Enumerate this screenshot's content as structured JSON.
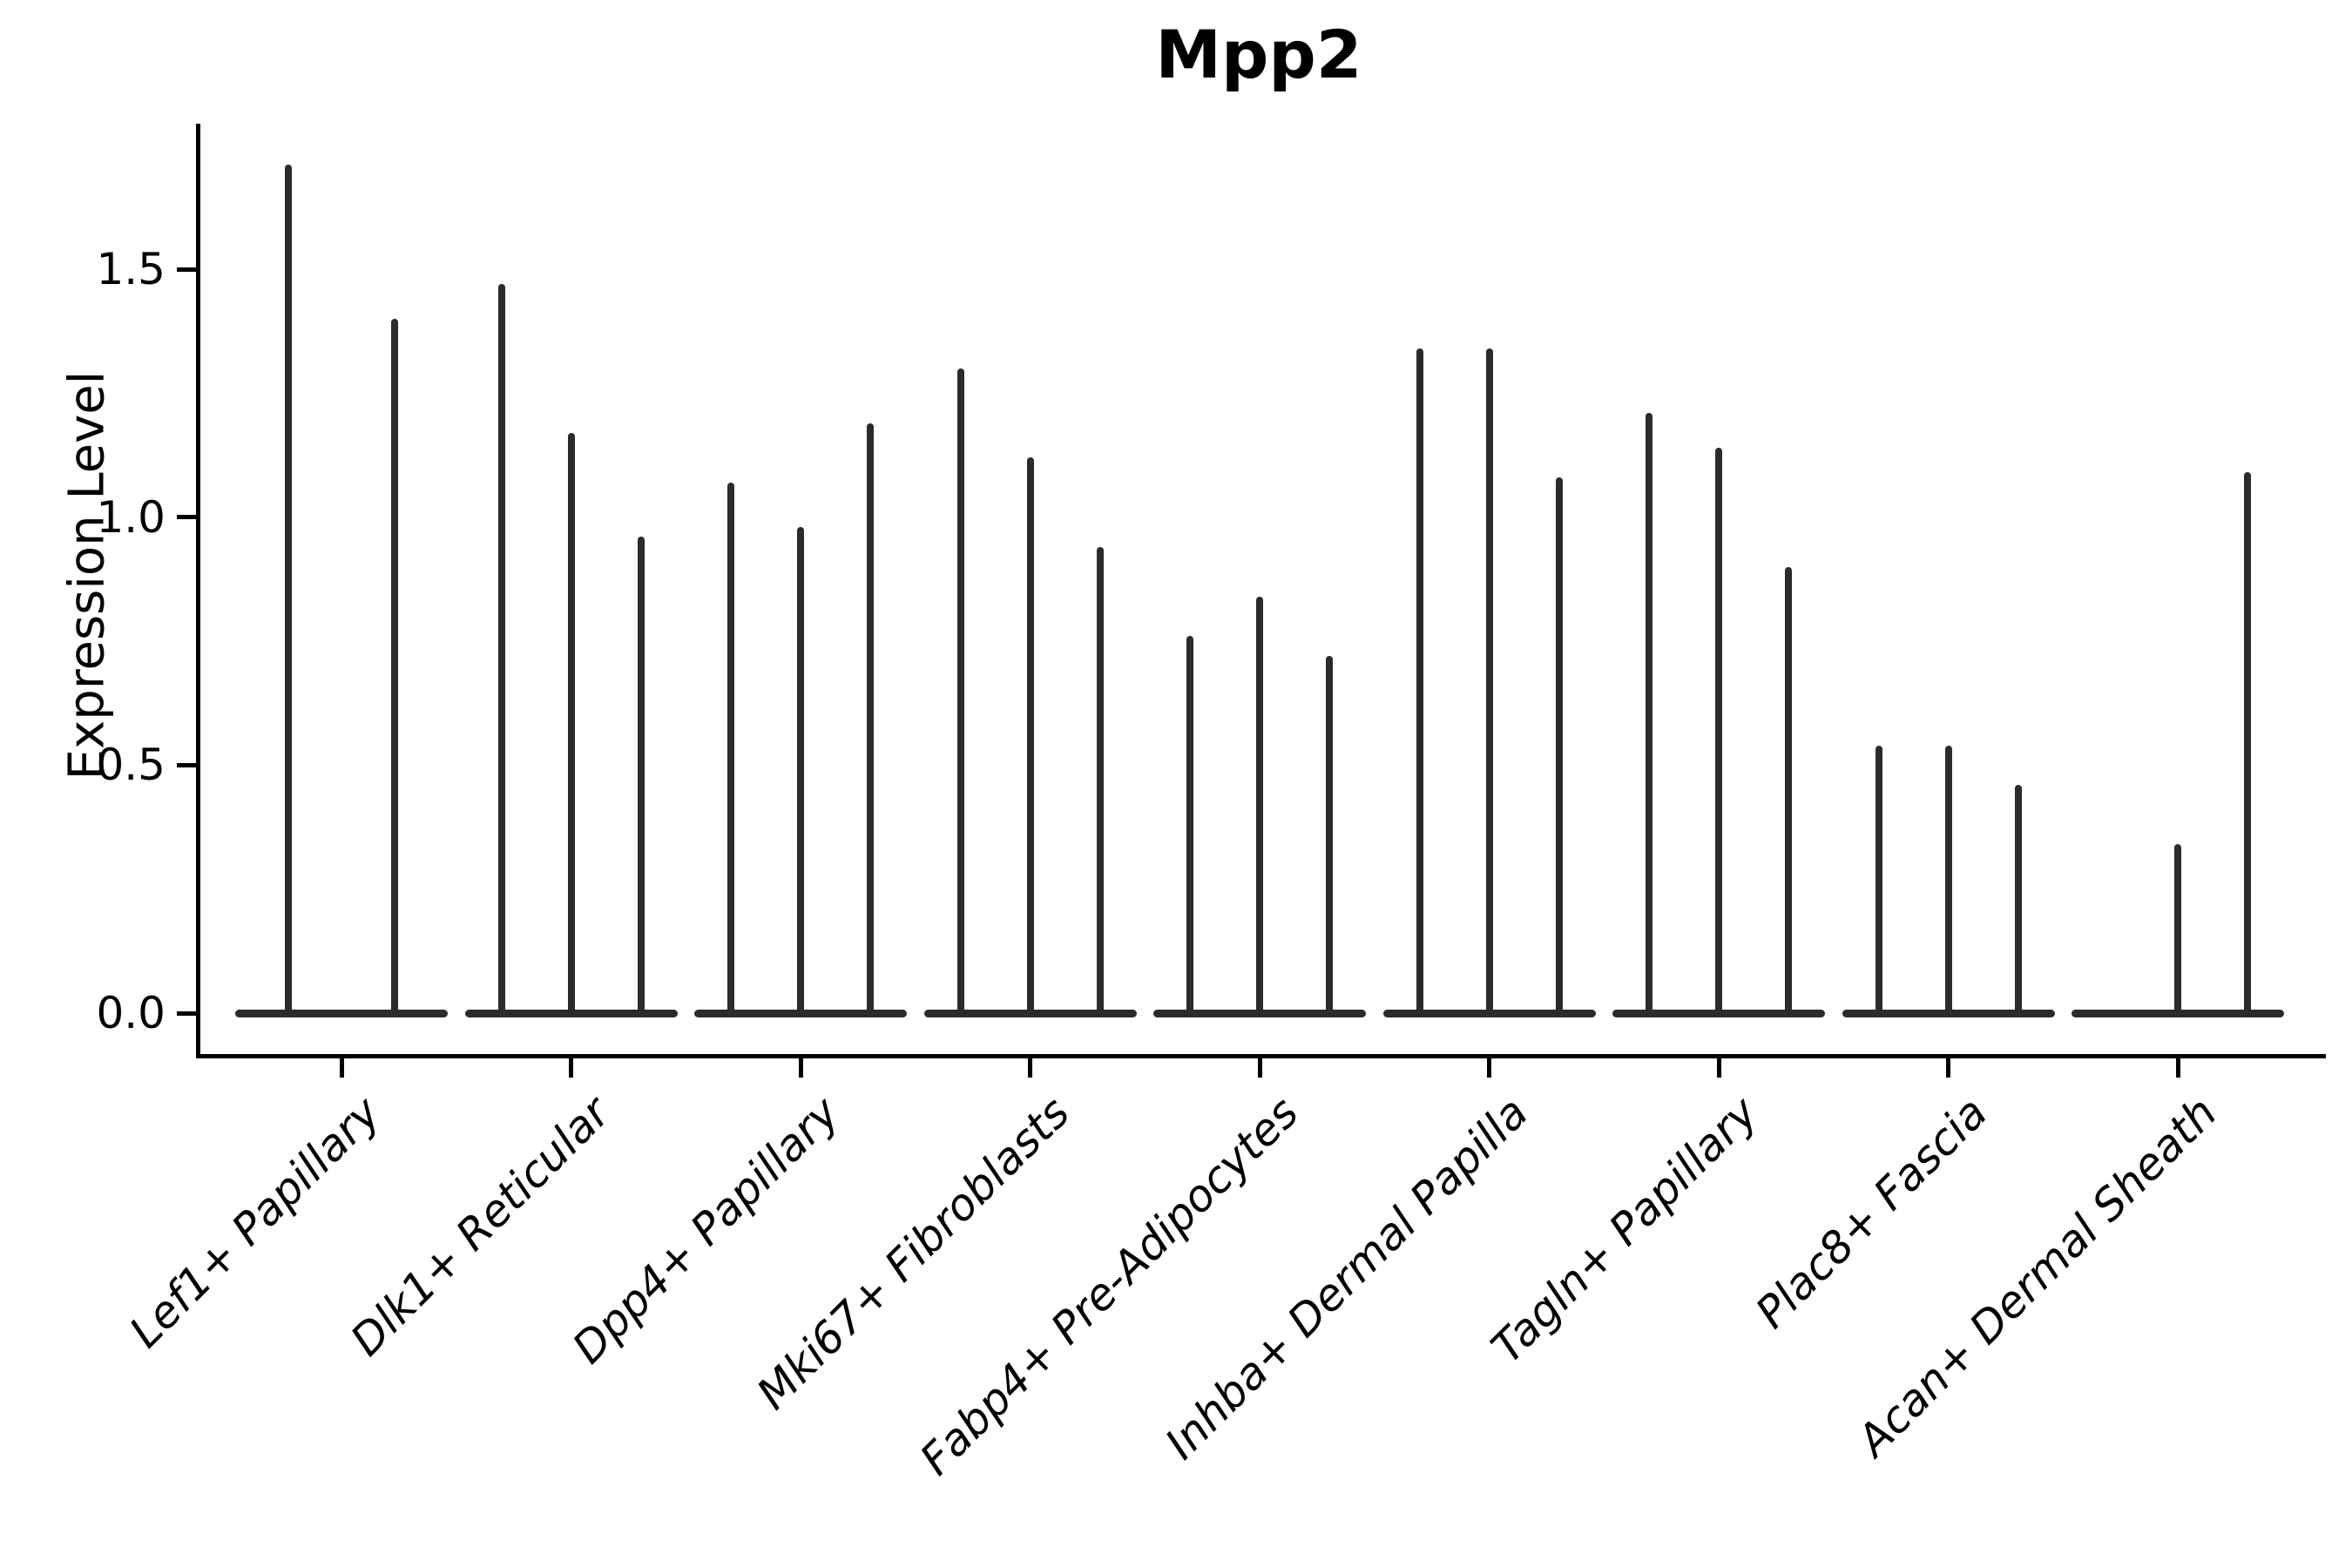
{
  "figure_title": "Mpp2",
  "y_axis_label": "Expression Level",
  "chart_data": {
    "type": "violin",
    "title": "Mpp2",
    "xlabel": "",
    "ylabel": "Expression Level",
    "ylim": [
      -0.08,
      1.79
    ],
    "yticks": [
      0.0,
      0.5,
      1.0,
      1.5
    ],
    "ytick_labels": [
      "0.0",
      "0.5",
      "1.0",
      "1.5"
    ],
    "grid": false,
    "legend": "none",
    "note": "Single-cell expression violin plot; each category holds 2-3 very thin needle-like violins (split groups) rising from a flat collapsed base at expression 0. Values below are the max expression (needle tip) per violin; 0 means a fully flat violin with no needle.",
    "violin_color": "#2b2b2b",
    "axis_color": "#000000",
    "groups": [
      {
        "category": "Lef1+ Papillary",
        "violin_max_values": [
          1.71,
          1.4
        ]
      },
      {
        "category": "Dlk1+ Reticular",
        "violin_max_values": [
          1.47,
          1.17,
          0.96
        ]
      },
      {
        "category": "Dpp4+ Papillary",
        "violin_max_values": [
          1.07,
          0.98,
          1.19
        ]
      },
      {
        "category": "Mki67+ Fibroblasts",
        "violin_max_values": [
          1.3,
          1.12,
          0.94
        ]
      },
      {
        "category": "Fabp4+ Pre-Adipocytes",
        "violin_max_values": [
          0.76,
          0.84,
          0.72
        ]
      },
      {
        "category": "Inhba+ Dermal Papilla",
        "violin_max_values": [
          1.34,
          1.34,
          1.08
        ]
      },
      {
        "category": "Tagln+ Papillary",
        "violin_max_values": [
          1.21,
          1.14,
          0.9
        ]
      },
      {
        "category": "Plac8+ Fascia",
        "violin_max_values": [
          0.54,
          0.54,
          0.46
        ]
      },
      {
        "category": "Acan+ Dermal Sheath",
        "violin_max_values": [
          0.0,
          0.34,
          1.09
        ]
      }
    ]
  }
}
